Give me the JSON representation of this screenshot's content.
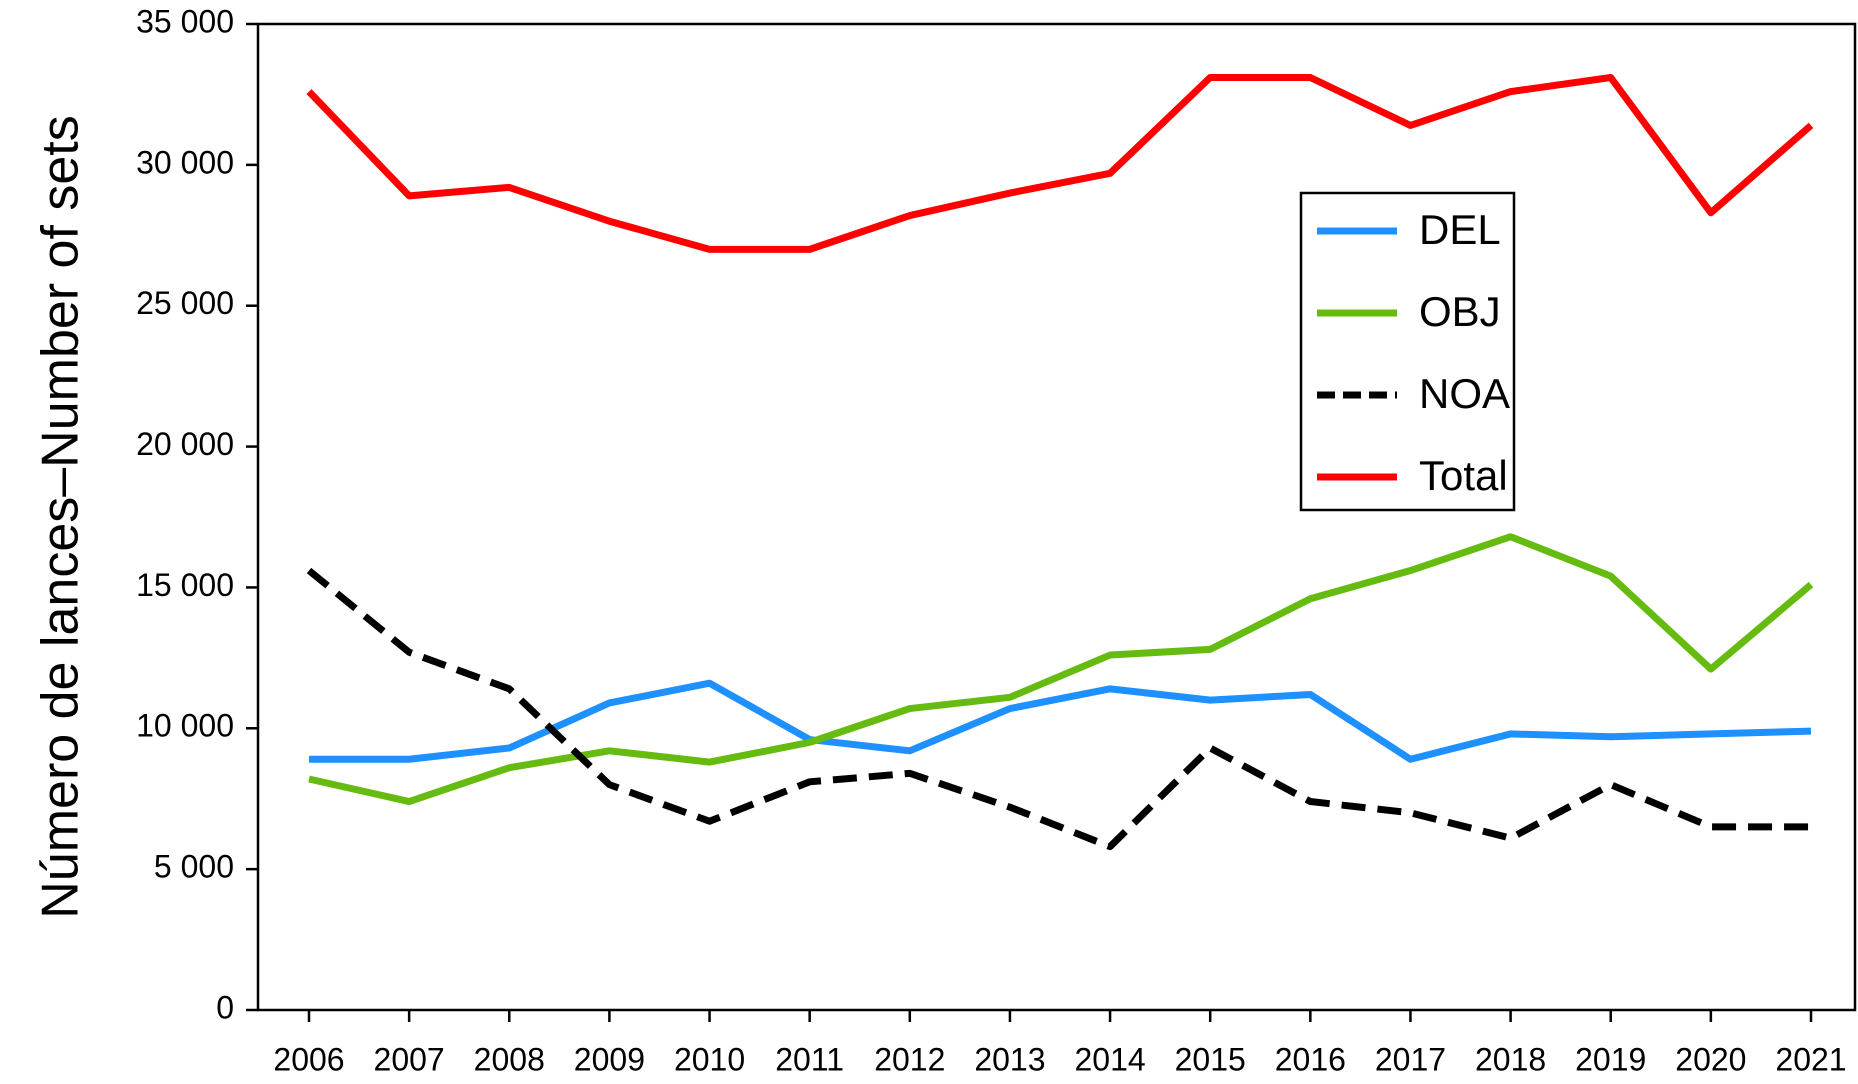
{
  "chart_data": {
    "type": "line",
    "y_label": "Número de lances–Number of sets",
    "categories": [
      "2006",
      "2007",
      "2008",
      "2009",
      "2010",
      "2011",
      "2012",
      "2013",
      "2014",
      "2015",
      "2016",
      "2017",
      "2018",
      "2019",
      "2020",
      "2021"
    ],
    "series": [
      {
        "name": "DEL",
        "color": "#1e90ff",
        "dashed": false,
        "values": [
          8900,
          8900,
          9300,
          10900,
          11600,
          9600,
          9200,
          10700,
          11400,
          11000,
          11200,
          8900,
          9800,
          9700,
          9800,
          9900
        ]
      },
      {
        "name": "OBJ",
        "color": "#66bb11",
        "dashed": false,
        "values": [
          8200,
          7400,
          8600,
          9200,
          8800,
          9500,
          10700,
          11100,
          12600,
          12800,
          14600,
          15600,
          16800,
          15400,
          12100,
          15100
        ]
      },
      {
        "name": "NOA",
        "color": "#000000",
        "dashed": true,
        "values": [
          15600,
          12700,
          11400,
          8000,
          6700,
          8100,
          8400,
          7200,
          5800,
          9300,
          7400,
          7000,
          6100,
          8000,
          6500,
          6500
        ]
      },
      {
        "name": "Total",
        "color": "#ff0000",
        "dashed": false,
        "values": [
          32600,
          28900,
          29200,
          28000,
          27000,
          27000,
          28200,
          29000,
          29700,
          33100,
          33100,
          31400,
          32600,
          33100,
          28300,
          31400
        ]
      }
    ],
    "ylim": [
      0,
      35000
    ],
    "yticks": [
      0,
      {
        "value": 5000,
        "label": "5 000"
      },
      {
        "value": 10000,
        "label": "10 000"
      },
      {
        "value": 15000,
        "label": "15 000"
      },
      {
        "value": 20000,
        "label": "20 000"
      },
      {
        "value": 25000,
        "label": "25 000"
      },
      {
        "value": 30000,
        "label": "30 000"
      },
      {
        "value": 35000,
        "label": "35 000"
      }
    ],
    "grid": false,
    "legend": "right"
  }
}
